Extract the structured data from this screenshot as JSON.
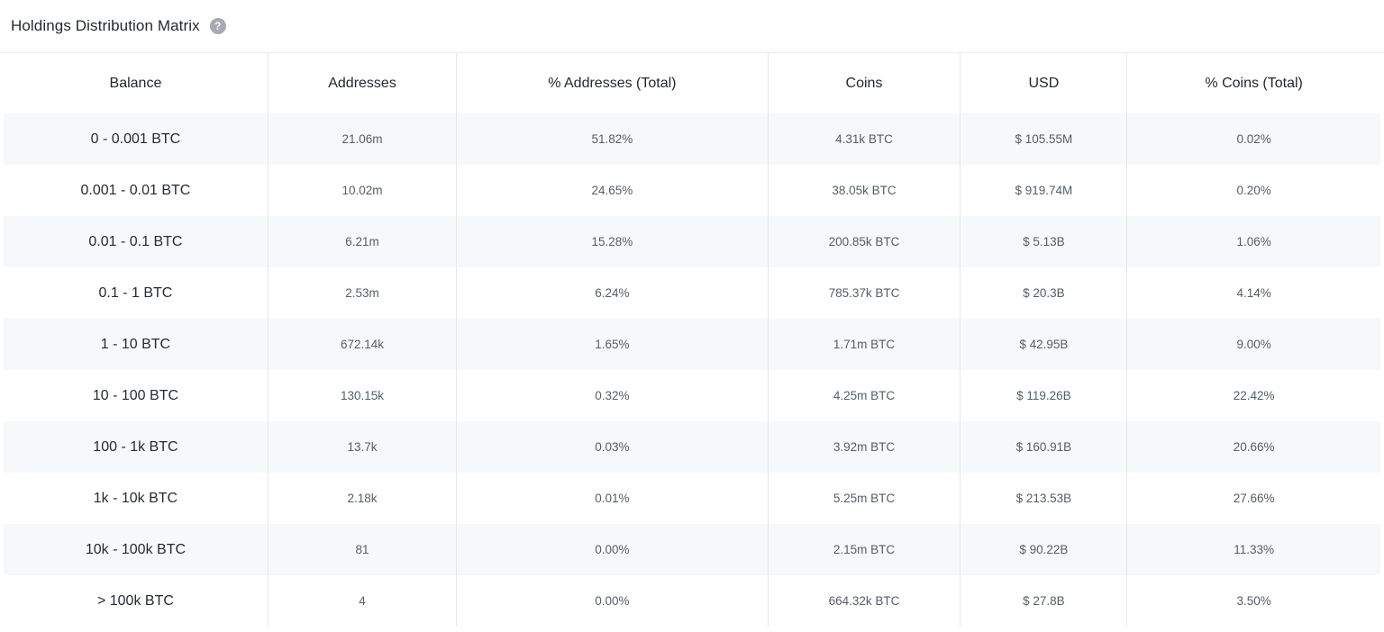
{
  "panel": {
    "title": "Holdings Distribution Matrix",
    "help_icon_glyph": "?"
  },
  "colors": {
    "row_stripe": "#f7f8f9",
    "column_divider": "#e6e7ea",
    "title_text": "#24292f",
    "header_text": "#23282f",
    "balance_text": "#262b33",
    "value_text": "#565d66",
    "help_icon_bg": "#a7abb1"
  },
  "table": {
    "columns": [
      "Balance",
      "Addresses",
      "% Addresses (Total)",
      "Coins",
      "USD",
      "% Coins (Total)"
    ],
    "rows": [
      [
        "0 - 0.001 BTC",
        "21.06m",
        "51.82%",
        "4.31k BTC",
        "$ 105.55M",
        "0.02%"
      ],
      [
        "0.001 - 0.01 BTC",
        "10.02m",
        "24.65%",
        "38.05k BTC",
        "$ 919.74M",
        "0.20%"
      ],
      [
        "0.01 - 0.1 BTC",
        "6.21m",
        "15.28%",
        "200.85k BTC",
        "$ 5.13B",
        "1.06%"
      ],
      [
        "0.1 - 1 BTC",
        "2.53m",
        "6.24%",
        "785.37k BTC",
        "$ 20.3B",
        "4.14%"
      ],
      [
        "1 - 10 BTC",
        "672.14k",
        "1.65%",
        "1.71m BTC",
        "$ 42.95B",
        "9.00%"
      ],
      [
        "10 - 100 BTC",
        "130.15k",
        "0.32%",
        "4.25m BTC",
        "$ 119.26B",
        "22.42%"
      ],
      [
        "100 - 1k BTC",
        "13.7k",
        "0.03%",
        "3.92m BTC",
        "$ 160.91B",
        "20.66%"
      ],
      [
        "1k - 10k BTC",
        "2.18k",
        "0.01%",
        "5.25m BTC",
        "$ 213.53B",
        "27.66%"
      ],
      [
        "10k - 100k BTC",
        "81",
        "0.00%",
        "2.15m BTC",
        "$ 90.22B",
        "11.33%"
      ],
      [
        "> 100k BTC",
        "4",
        "0.00%",
        "664.32k BTC",
        "$ 27.8B",
        "3.50%"
      ]
    ]
  },
  "chart_data": {
    "type": "table",
    "title": "Holdings Distribution Matrix",
    "columns": [
      "Balance",
      "Addresses",
      "% Addresses (Total)",
      "Coins",
      "USD",
      "% Coins (Total)"
    ],
    "rows": [
      [
        "0 - 0.001 BTC",
        "21.06m",
        "51.82%",
        "4.31k BTC",
        "$ 105.55M",
        "0.02%"
      ],
      [
        "0.001 - 0.01 BTC",
        "10.02m",
        "24.65%",
        "38.05k BTC",
        "$ 919.74M",
        "0.20%"
      ],
      [
        "0.01 - 0.1 BTC",
        "6.21m",
        "15.28%",
        "200.85k BTC",
        "$ 5.13B",
        "1.06%"
      ],
      [
        "0.1 - 1 BTC",
        "2.53m",
        "6.24%",
        "785.37k BTC",
        "$ 20.3B",
        "4.14%"
      ],
      [
        "1 - 10 BTC",
        "672.14k",
        "1.65%",
        "1.71m BTC",
        "$ 42.95B",
        "9.00%"
      ],
      [
        "10 - 100 BTC",
        "130.15k",
        "0.32%",
        "4.25m BTC",
        "$ 119.26B",
        "22.42%"
      ],
      [
        "100 - 1k BTC",
        "13.7k",
        "0.03%",
        "3.92m BTC",
        "$ 160.91B",
        "20.66%"
      ],
      [
        "1k - 10k BTC",
        "2.18k",
        "0.01%",
        "5.25m BTC",
        "$ 213.53B",
        "27.66%"
      ],
      [
        "10k - 100k BTC",
        "81",
        "0.00%",
        "2.15m BTC",
        "$ 90.22B",
        "11.33%"
      ],
      [
        "> 100k BTC",
        "4",
        "0.00%",
        "664.32k BTC",
        "$ 27.8B",
        "3.50%"
      ]
    ]
  }
}
